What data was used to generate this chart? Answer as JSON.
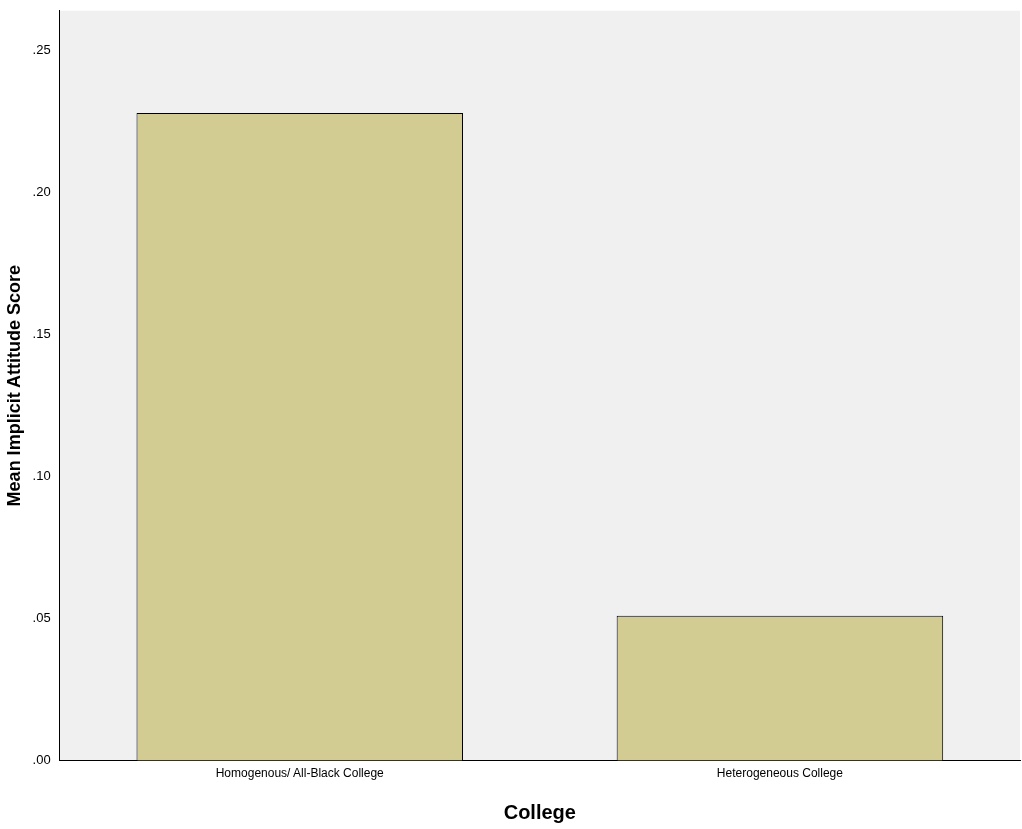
{
  "chart_data": {
    "type": "bar",
    "xlabel": "College",
    "ylabel": "Mean Implicit Attitude Score",
    "categories": [
      "Homogenous/ All-Black College",
      "Heterogeneous College"
    ],
    "values": [
      0.228,
      0.051
    ],
    "color": "#d2cc92",
    "ylim": [
      0,
      0.264
    ],
    "yticks": [
      {
        "value": 0,
        "label": ".00"
      },
      {
        "value": 0.05,
        "label": ".05"
      },
      {
        "value": 0.1,
        "label": ".10"
      },
      {
        "value": 0.15,
        "label": ".15"
      },
      {
        "value": 0.2,
        "label": ".20"
      },
      {
        "value": 0.25,
        "label": ".25"
      }
    ],
    "grid": false
  }
}
